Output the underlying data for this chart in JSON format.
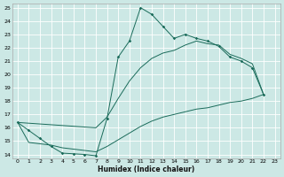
{
  "xlabel": "Humidex (Indice chaleur)",
  "bg_color": "#cce8e5",
  "grid_color": "#b0d4cf",
  "line_color": "#1a6b5a",
  "xlim": [
    0,
    23
  ],
  "ylim": [
    14,
    25
  ],
  "xticks": [
    0,
    1,
    2,
    3,
    4,
    5,
    6,
    7,
    8,
    9,
    10,
    11,
    12,
    13,
    14,
    15,
    16,
    17,
    18,
    19,
    20,
    21,
    22,
    23
  ],
  "yticks": [
    14,
    15,
    16,
    17,
    18,
    19,
    20,
    21,
    22,
    23,
    24,
    25
  ],
  "line1_x": [
    0,
    1,
    2,
    3,
    4,
    5,
    6,
    7,
    8,
    9,
    10,
    11,
    12,
    13,
    14,
    15,
    16,
    17,
    18,
    19,
    20,
    21,
    22
  ],
  "line1_y": [
    16.4,
    15.8,
    15.2,
    14.6,
    14.1,
    14.05,
    14.0,
    13.9,
    16.7,
    21.3,
    22.5,
    25.0,
    24.5,
    23.6,
    22.7,
    23.0,
    22.7,
    22.5,
    22.1,
    21.3,
    21.0,
    20.5,
    18.5
  ],
  "line2_x": [
    0,
    7,
    8,
    9,
    10,
    11,
    12,
    13,
    14,
    15,
    16,
    17,
    18,
    19,
    20,
    21,
    22
  ],
  "line2_y": [
    16.4,
    16.0,
    16.8,
    18.2,
    19.5,
    20.5,
    21.2,
    21.6,
    21.8,
    22.2,
    22.5,
    22.3,
    22.2,
    21.5,
    21.2,
    20.8,
    18.5
  ],
  "line3_x": [
    0,
    1,
    2,
    3,
    4,
    5,
    6,
    7,
    8,
    9,
    10,
    11,
    12,
    13,
    14,
    15,
    16,
    17,
    18,
    19,
    20,
    21,
    22
  ],
  "line3_y": [
    16.4,
    14.9,
    14.8,
    14.7,
    14.5,
    14.4,
    14.3,
    14.2,
    14.6,
    15.1,
    15.6,
    16.1,
    16.5,
    16.8,
    17.0,
    17.2,
    17.4,
    17.5,
    17.7,
    17.9,
    18.0,
    18.2,
    18.5
  ]
}
